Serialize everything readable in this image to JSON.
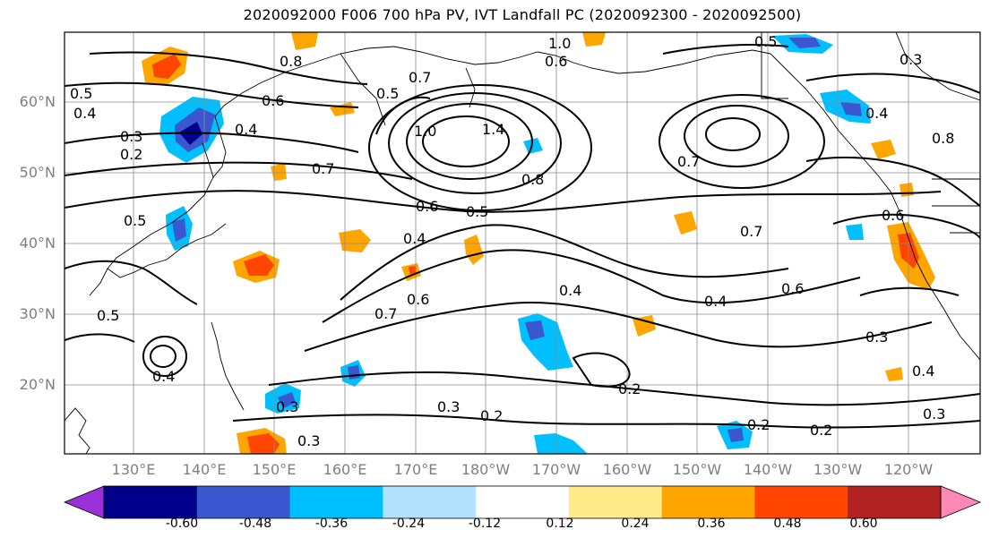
{
  "title": "2020092000 F006 700 hPa PV, IVT Landfall PC (2020092300 - 2020092500)",
  "lat_labels": [
    "60°N",
    "50°N",
    "40°N",
    "30°N",
    "20°N"
  ],
  "lon_labels": [
    "130°E",
    "140°E",
    "150°E",
    "160°E",
    "170°E",
    "180°W",
    "170°W",
    "160°W",
    "150°W",
    "140°W",
    "130°W",
    "120°W"
  ],
  "colorbar": {
    "ticks": [
      "-0.60",
      "-0.48",
      "-0.36",
      "-0.24",
      "-0.12",
      "0.12",
      "0.24",
      "0.36",
      "0.48",
      "0.60"
    ],
    "colors": [
      "#9b30d9",
      "#00008b",
      "#3a57d0",
      "#00bfff",
      "#b2e2ff",
      "#ffffff",
      "#ffeb8a",
      "#ffa500",
      "#ff4500",
      "#b22222",
      "#ff89b6"
    ]
  },
  "contour_labels": [
    "0.8",
    "0.7",
    "1.0",
    "0.6",
    "0.5",
    "0.4",
    "0.3",
    "0.2",
    "1.4",
    "1.0",
    "0.7",
    "0.6",
    "0.5",
    "0.4",
    "0.3",
    "0.2",
    "0.7",
    "0.8",
    "0.6",
    "0.5",
    "0.4",
    "0.3",
    "0.2",
    "0.7",
    "0.6",
    "0.4",
    "0.5",
    "0.3",
    "0.4",
    "0.6",
    "0.7",
    "0.2",
    "0.3",
    "0.4",
    "0.3",
    "0.2",
    "0.5",
    "0.3",
    "0.4",
    "0.5",
    "0.8",
    "0.6",
    "0.4"
  ]
}
